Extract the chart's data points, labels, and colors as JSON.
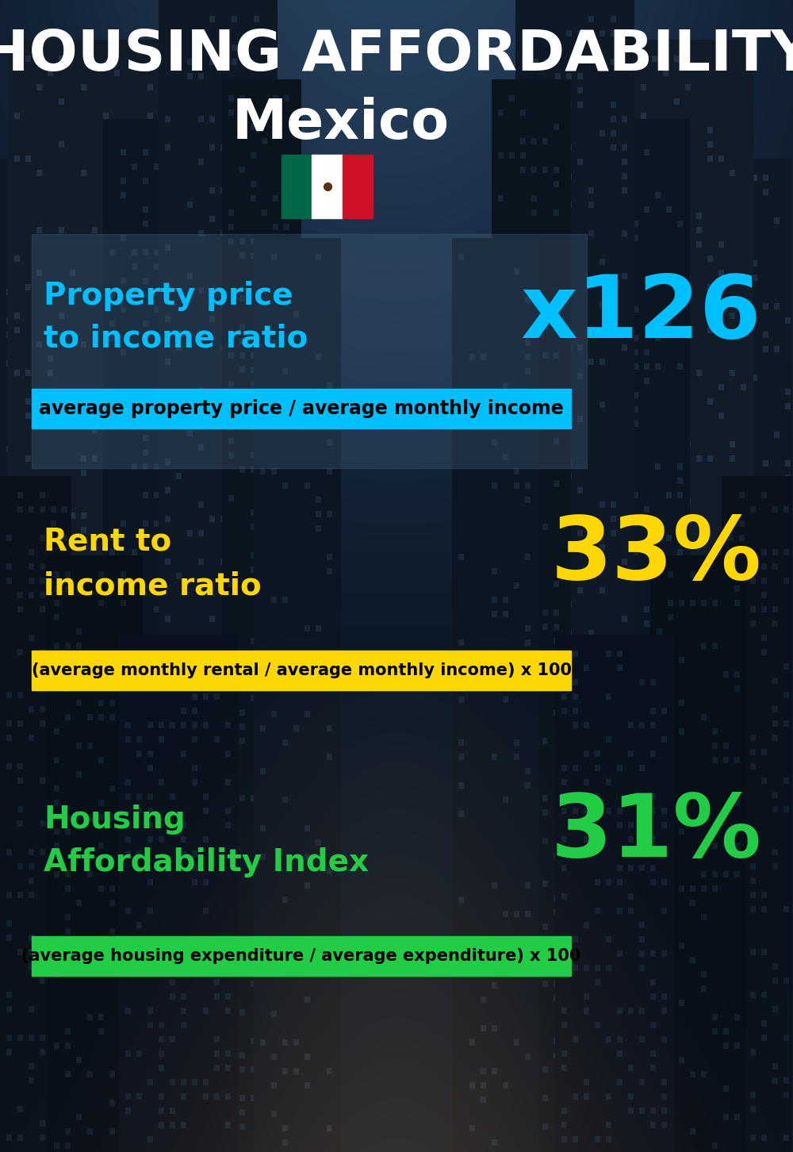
{
  "title_line1": "HOUSING AFFORDABILITY",
  "title_line2": "Mexico",
  "bg_color": "#0d1b2a",
  "section1_label": "Property price\nto income ratio",
  "section1_value": "x126",
  "section1_label_color": "#00bfff",
  "section1_value_color": "#00bfff",
  "section1_bar_color": "#00bfff",
  "section1_bar_text": "average property price / average monthly income",
  "section1_bar_text_color": "#000000",
  "section2_label": "Rent to\nincome ratio",
  "section2_value": "33%",
  "section2_label_color": "#ffd700",
  "section2_value_color": "#ffd700",
  "section2_bar_color": "#ffd700",
  "section2_bar_text": "(average monthly rental / average monthly income) x 100",
  "section2_bar_text_color": "#000000",
  "section3_label": "Housing\nAffordability Index",
  "section3_value": "31%",
  "section3_label_color": "#22cc44",
  "section3_value_color": "#22cc44",
  "section3_bar_color": "#22cc44",
  "section3_bar_text": "(average housing expenditure / average expenditure) x 100",
  "section3_bar_text_color": "#000000"
}
